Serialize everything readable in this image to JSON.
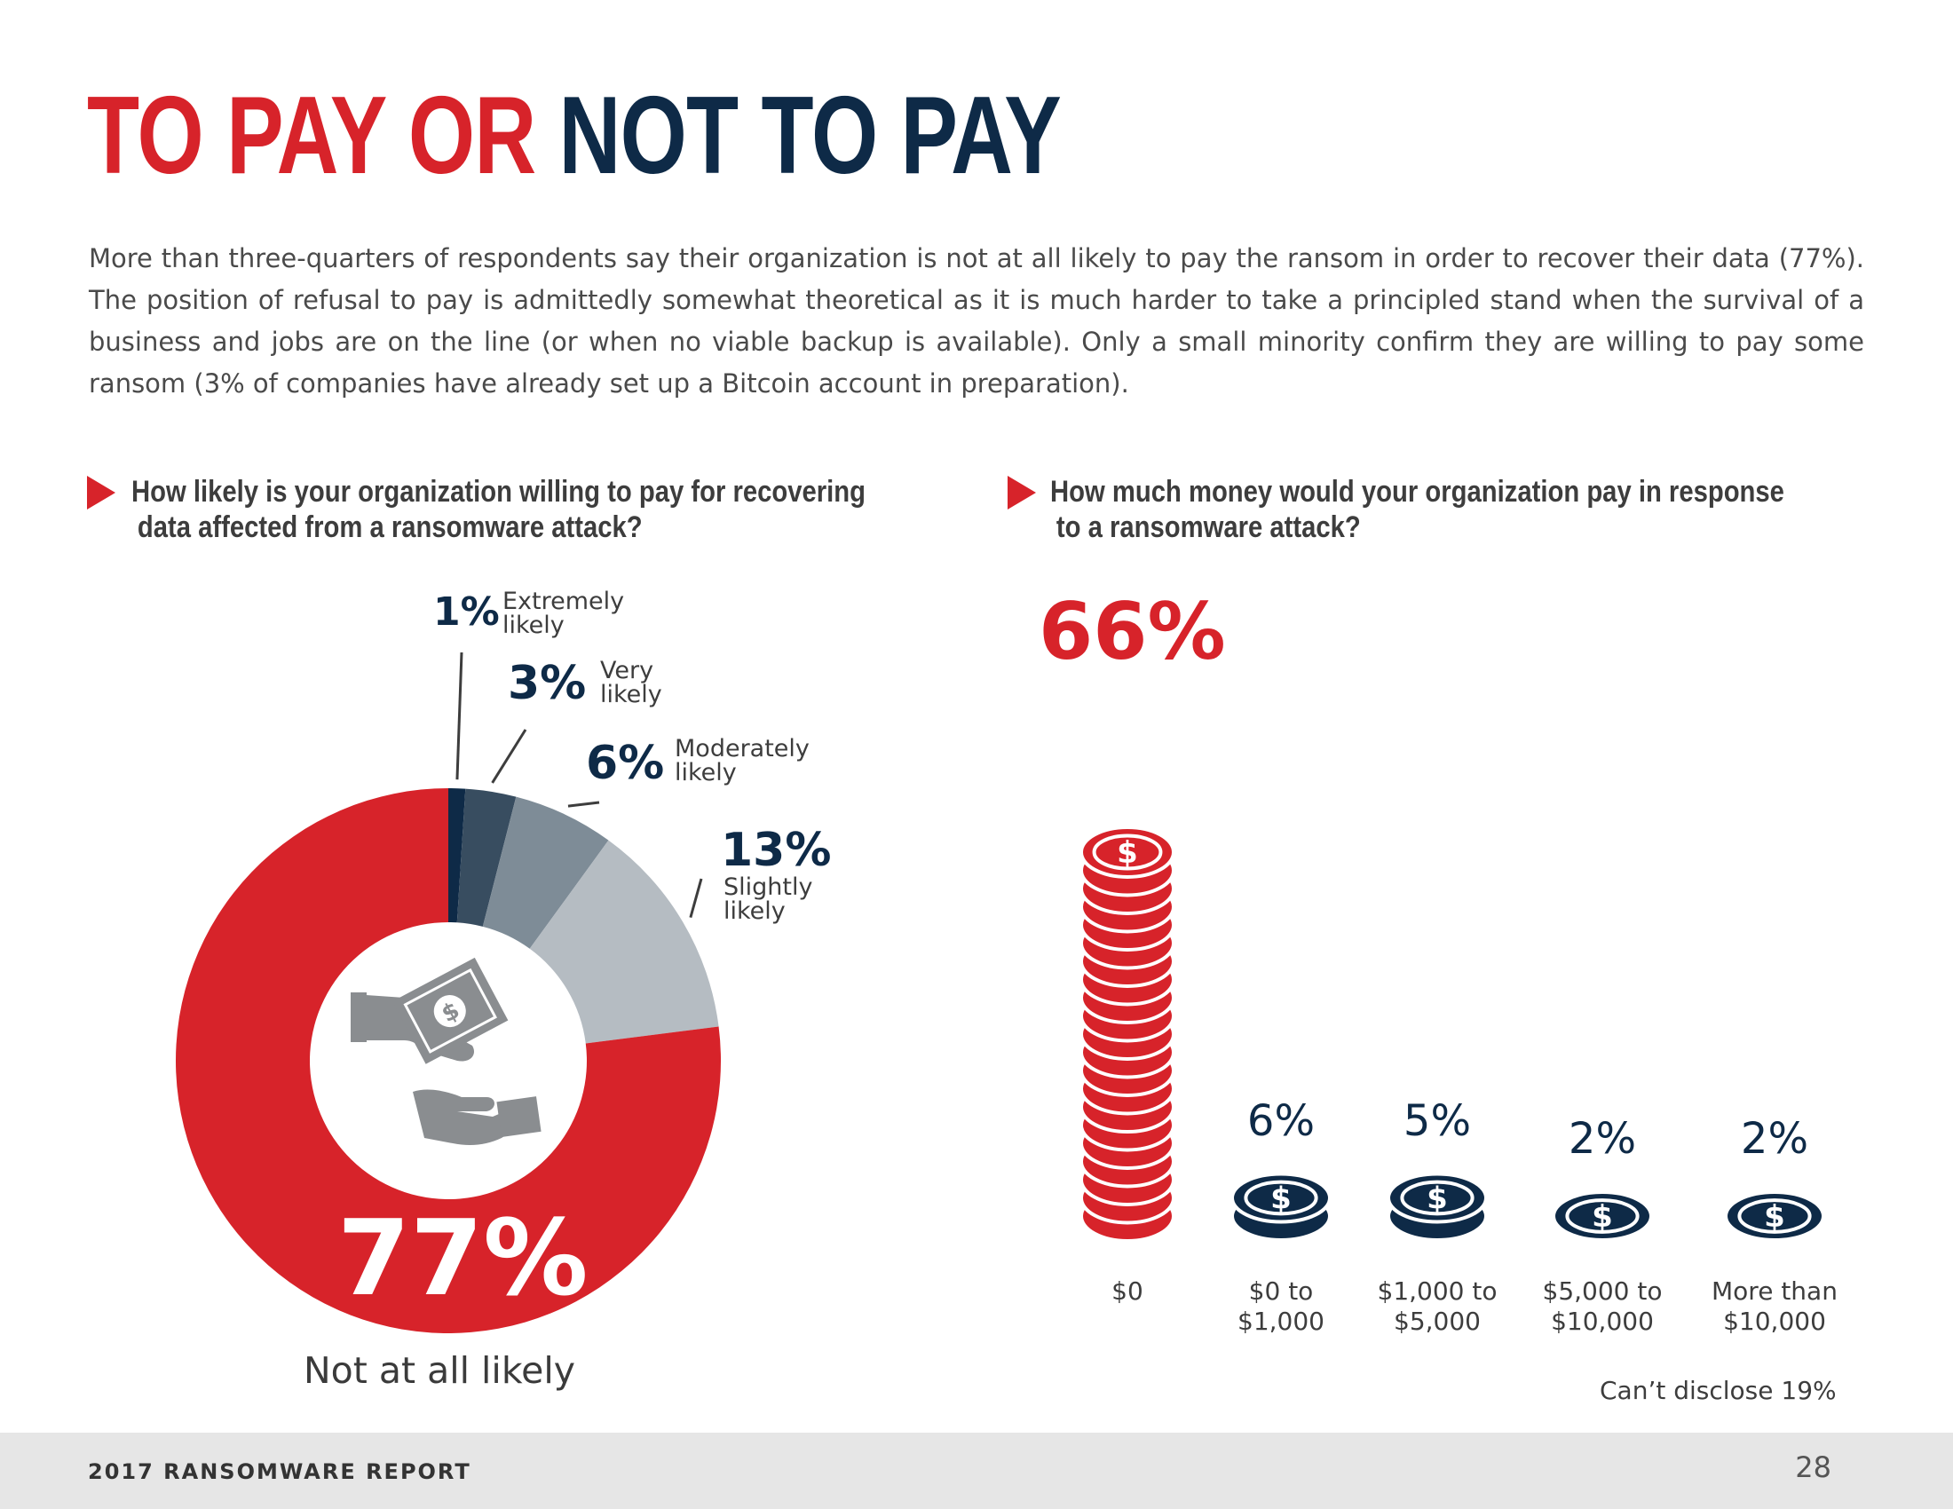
{
  "title": {
    "red_part": "TO PAY OR",
    "navy_part": "NOT TO PAY"
  },
  "intro": "More than three-quarters of respondents say their organization is not at all likely to pay the ransom in order to recover their data (77%). The position of refusal to pay is admittedly somewhat theoretical as it is much harder to take a principled stand when the survival of a business and jobs are on the line (or when no viable backup is available). Only a small minority confirm they are willing to pay some ransom (3% of companies have already set up a Bitcoin account in preparation).",
  "colors": {
    "red": "#d7232a",
    "navy": "#0e2a47",
    "slate": "#384d60",
    "gray": "#7e8c97",
    "light_gray": "#b5bcc2"
  },
  "chart_data": [
    {
      "type": "pie",
      "question_line1": "How likely is your organization willing to pay for recovering",
      "question_line2": "data affected from a ransomware attack?",
      "slices": [
        {
          "label": "Extremely likely",
          "label_line1": "Extremely",
          "label_line2": "likely",
          "pct_text": "1%",
          "value": 1,
          "color": "#0e2a47"
        },
        {
          "label": "Very likely",
          "label_line1": "Very",
          "label_line2": "likely",
          "pct_text": "3%",
          "value": 3,
          "color": "#384d60"
        },
        {
          "label": "Moderately likely",
          "label_line1": "Moderately",
          "label_line2": "likely",
          "pct_text": "6%",
          "value": 6,
          "color": "#7e8c97"
        },
        {
          "label": "Slightly likely",
          "label_line1": "Slightly",
          "label_line2": "likely",
          "pct_text": "13%",
          "value": 13,
          "color": "#b5bcc2"
        },
        {
          "label": "Not at all likely",
          "label_line1": "Not at all likely",
          "label_line2": "",
          "pct_text": "77%",
          "value": 77,
          "color": "#d7232a"
        }
      ],
      "center_icon": "hands-money-icon"
    },
    {
      "type": "bar",
      "question_line1": "How much money would your organization pay in response",
      "question_line2": "to a ransomware attack?",
      "categories": [
        "$0",
        "$0 to\n$1,000",
        "$1,000 to\n$5,000",
        "$5,000 to\n$10,000",
        "More than\n$10,000"
      ],
      "values": [
        66,
        6,
        5,
        2,
        2
      ],
      "pct_text": [
        "66%",
        "6%",
        "5%",
        "2%",
        "2%"
      ],
      "bar_icon": "coin-stack-icon",
      "note": "Can’t disclose 19%"
    }
  ],
  "footer": {
    "report": "2017 RANSOMWARE REPORT",
    "page": "28"
  }
}
